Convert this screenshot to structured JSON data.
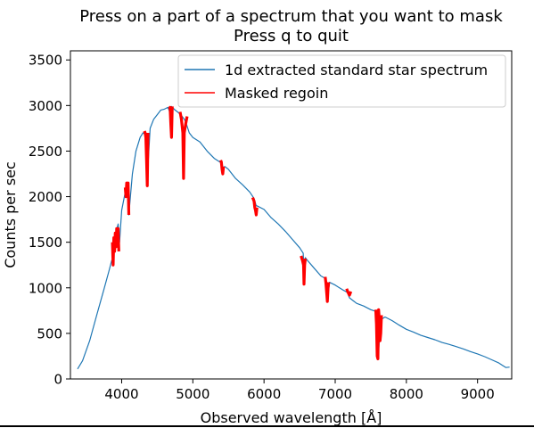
{
  "chart_data": {
    "type": "line",
    "title": [
      "Press on a part of a spectrum that you want to mask",
      "Press q to quit"
    ],
    "xlabel": "Observed wavelength [Å]",
    "ylabel": "Counts per sec",
    "xlim": [
      3280,
      9480
    ],
    "ylim": [
      0,
      3600
    ],
    "xticks": [
      4000,
      5000,
      6000,
      7000,
      8000,
      9000
    ],
    "yticks": [
      0,
      500,
      1000,
      1500,
      2000,
      2500,
      3000,
      3500
    ],
    "grid": false,
    "legend_position": "top-right",
    "series": [
      {
        "name": "1d extracted standard star spectrum",
        "color": "#1f77b4",
        "x": [
          3380,
          3450,
          3550,
          3650,
          3750,
          3820,
          3860,
          3880,
          3900,
          3920,
          3950,
          3970,
          4000,
          4050,
          4080,
          4100,
          4150,
          4200,
          4260,
          4300,
          4340,
          4360,
          4400,
          4450,
          4500,
          4550,
          4600,
          4650,
          4680,
          4700,
          4750,
          4800,
          4850,
          4880,
          4900,
          4950,
          5000,
          5100,
          5200,
          5300,
          5400,
          5420,
          5450,
          5500,
          5600,
          5700,
          5800,
          5860,
          5890,
          5900,
          6000,
          6100,
          6200,
          6300,
          6400,
          6500,
          6550,
          6562,
          6580,
          6600,
          6700,
          6800,
          6870,
          6890,
          6920,
          7000,
          7100,
          7170,
          7200,
          7250,
          7300,
          7400,
          7500,
          7580,
          7605,
          7640,
          7700,
          7800,
          7900,
          8000,
          8100,
          8200,
          8300,
          8400,
          8500,
          8600,
          8700,
          8800,
          8900,
          9000,
          9100,
          9200,
          9300,
          9350,
          9400,
          9450
        ],
        "y": [
          110,
          200,
          420,
          700,
          980,
          1180,
          1300,
          1250,
          1480,
          1600,
          1700,
          1500,
          1850,
          2050,
          2150,
          1800,
          2250,
          2500,
          2650,
          2700,
          2680,
          2200,
          2750,
          2850,
          2900,
          2950,
          2960,
          2980,
          2920,
          2990,
          2950,
          2920,
          2880,
          2850,
          2820,
          2700,
          2650,
          2600,
          2500,
          2420,
          2370,
          2320,
          2330,
          2300,
          2200,
          2130,
          2050,
          1980,
          1900,
          1900,
          1860,
          1770,
          1700,
          1620,
          1530,
          1440,
          1380,
          1200,
          1330,
          1310,
          1220,
          1130,
          1100,
          860,
          1060,
          1030,
          980,
          950,
          890,
          860,
          830,
          800,
          760,
          740,
          250,
          650,
          680,
          640,
          590,
          545,
          515,
          480,
          455,
          430,
          400,
          380,
          355,
          330,
          300,
          275,
          245,
          210,
          175,
          150,
          125,
          130
        ]
      },
      {
        "name": "Masked regoin",
        "color": "#ff0000",
        "segments": [
          {
            "x": [
              3870,
              3880,
              3890,
              3900,
              3910,
              3920,
              3930,
              3940,
              3950,
              3960
            ],
            "y": [
              1500,
              1250,
              1550,
              1400,
              1600,
              1450,
              1650,
              1550,
              1650,
              1400
            ]
          },
          {
            "x": [
              4050,
              4060,
              4070,
              4080,
              4090,
              4100
            ],
            "y": [
              2100,
              2000,
              2150,
              2050,
              2150,
              1800
            ]
          },
          {
            "x": [
              4320,
              4330,
              4340,
              4350,
              4360,
              4370
            ],
            "y": [
              2720,
              2700,
              2650,
              2400,
              2120,
              2700
            ]
          },
          {
            "x": [
              4670,
              4680,
              4690,
              4700,
              4710
            ],
            "y": [
              2960,
              2980,
              2800,
              2650,
              2990
            ]
          },
          {
            "x": [
              4820,
              4840,
              4860,
              4870,
              4880,
              4900,
              4920
            ],
            "y": [
              2930,
              2850,
              2700,
              2200,
              2700,
              2800,
              2880
            ]
          },
          {
            "x": [
              5390,
              5400,
              5410,
              5420,
              5430
            ],
            "y": [
              2400,
              2380,
              2300,
              2250,
              2330
            ]
          },
          {
            "x": [
              5840,
              5860,
              5870,
              5880,
              5890,
              5900
            ],
            "y": [
              1990,
              1950,
              1880,
              1850,
              1800,
              1880
            ]
          },
          {
            "x": [
              6520,
              6540,
              6555,
              6562,
              6570,
              6580
            ],
            "y": [
              1350,
              1300,
              1250,
              1040,
              1250,
              1320
            ]
          },
          {
            "x": [
              6860,
              6870,
              6880,
              6890,
              6900,
              6910
            ],
            "y": [
              1120,
              1050,
              950,
              850,
              1000,
              1060
            ]
          },
          {
            "x": [
              7160,
              7180,
              7200,
              7220
            ],
            "y": [
              990,
              950,
              920,
              960
            ]
          },
          {
            "x": [
              7570,
              7580,
              7590,
              7600,
              7610,
              7620,
              7630,
              7640,
              7650
            ],
            "y": [
              760,
              600,
              250,
              220,
              760,
              650,
              420,
              500,
              700
            ]
          }
        ]
      }
    ]
  }
}
